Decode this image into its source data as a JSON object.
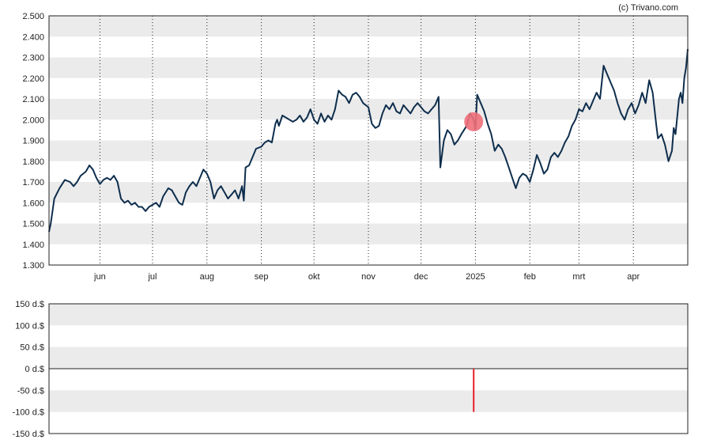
{
  "credit": "(c) Trivano.com",
  "colors": {
    "line": "#0e2e4d",
    "band": "#ebebeb",
    "marker": "#f0707a",
    "bar": "#e8202a",
    "grid": "#222222"
  },
  "chart_data": [
    {
      "type": "line",
      "title": "",
      "xlabel": "",
      "ylabel": "",
      "ylim": [
        1.3,
        2.5
      ],
      "y_ticks": [
        "2.500",
        "2.400",
        "2.300",
        "2.200",
        "2.100",
        "2.000",
        "1.900",
        "1.800",
        "1.700",
        "1.600",
        "1.500",
        "1.400",
        "1.300"
      ],
      "x_ticks": [
        "jun",
        "jul",
        "aug",
        "sep",
        "okt",
        "nov",
        "dec",
        "2025",
        "feb",
        "mrt",
        "apr"
      ],
      "x_tick_dates": [
        "2024-06-01",
        "2024-07-01",
        "2024-08-01",
        "2024-09-01",
        "2024-10-01",
        "2024-11-01",
        "2024-12-01",
        "2025-01-01",
        "2025-02-01",
        "2025-03-01",
        "2025-04-01"
      ],
      "xlim": [
        "2024-05-03",
        "2025-05-02"
      ],
      "grid": "vertical dotted lines at month starts; alternating horizontal bands",
      "series": [
        {
          "points": [
            [
              "2024-05-03",
              1.46
            ],
            [
              "2024-05-04",
              1.5
            ],
            [
              "2024-05-06",
              1.62
            ],
            [
              "2024-05-09",
              1.67
            ],
            [
              "2024-05-12",
              1.71
            ],
            [
              "2024-05-15",
              1.7
            ],
            [
              "2024-05-17",
              1.68
            ],
            [
              "2024-05-19",
              1.7
            ],
            [
              "2024-05-21",
              1.73
            ],
            [
              "2024-05-24",
              1.75
            ],
            [
              "2024-05-26",
              1.78
            ],
            [
              "2024-05-28",
              1.76
            ],
            [
              "2024-05-30",
              1.72
            ],
            [
              "2024-06-01",
              1.69
            ],
            [
              "2024-06-03",
              1.71
            ],
            [
              "2024-06-05",
              1.72
            ],
            [
              "2024-06-07",
              1.71
            ],
            [
              "2024-06-09",
              1.73
            ],
            [
              "2024-06-11",
              1.7
            ],
            [
              "2024-06-13",
              1.62
            ],
            [
              "2024-06-15",
              1.6
            ],
            [
              "2024-06-17",
              1.61
            ],
            [
              "2024-06-19",
              1.59
            ],
            [
              "2024-06-21",
              1.6
            ],
            [
              "2024-06-23",
              1.58
            ],
            [
              "2024-06-25",
              1.58
            ],
            [
              "2024-06-27",
              1.56
            ],
            [
              "2024-06-29",
              1.58
            ],
            [
              "2024-07-01",
              1.59
            ],
            [
              "2024-07-03",
              1.6
            ],
            [
              "2024-07-05",
              1.58
            ],
            [
              "2024-07-07",
              1.63
            ],
            [
              "2024-07-10",
              1.67
            ],
            [
              "2024-07-12",
              1.66
            ],
            [
              "2024-07-14",
              1.63
            ],
            [
              "2024-07-16",
              1.6
            ],
            [
              "2024-07-18",
              1.59
            ],
            [
              "2024-07-20",
              1.65
            ],
            [
              "2024-07-22",
              1.68
            ],
            [
              "2024-07-24",
              1.7
            ],
            [
              "2024-07-26",
              1.68
            ],
            [
              "2024-07-28",
              1.72
            ],
            [
              "2024-07-30",
              1.76
            ],
            [
              "2024-08-01",
              1.74
            ],
            [
              "2024-08-03",
              1.7
            ],
            [
              "2024-08-05",
              1.62
            ],
            [
              "2024-08-07",
              1.66
            ],
            [
              "2024-08-09",
              1.68
            ],
            [
              "2024-08-11",
              1.65
            ],
            [
              "2024-08-13",
              1.62
            ],
            [
              "2024-08-15",
              1.64
            ],
            [
              "2024-08-17",
              1.66
            ],
            [
              "2024-08-19",
              1.62
            ],
            [
              "2024-08-21",
              1.68
            ],
            [
              "2024-08-22",
              1.61
            ],
            [
              "2024-08-23",
              1.77
            ],
            [
              "2024-08-25",
              1.78
            ],
            [
              "2024-08-27",
              1.82
            ],
            [
              "2024-08-29",
              1.86
            ],
            [
              "2024-09-01",
              1.87
            ],
            [
              "2024-09-03",
              1.89
            ],
            [
              "2024-09-05",
              1.9
            ],
            [
              "2024-09-07",
              1.89
            ],
            [
              "2024-09-09",
              1.98
            ],
            [
              "2024-09-10",
              2.0
            ],
            [
              "2024-09-11",
              1.97
            ],
            [
              "2024-09-13",
              2.02
            ],
            [
              "2024-09-15",
              2.01
            ],
            [
              "2024-09-17",
              2.0
            ],
            [
              "2024-09-19",
              1.99
            ],
            [
              "2024-09-21",
              2.0
            ],
            [
              "2024-09-23",
              2.02
            ],
            [
              "2024-09-25",
              1.99
            ],
            [
              "2024-09-27",
              2.01
            ],
            [
              "2024-09-29",
              2.05
            ],
            [
              "2024-10-01",
              2.0
            ],
            [
              "2024-10-03",
              1.98
            ],
            [
              "2024-10-05",
              2.03
            ],
            [
              "2024-10-07",
              1.99
            ],
            [
              "2024-10-09",
              2.02
            ],
            [
              "2024-10-11",
              2.0
            ],
            [
              "2024-10-13",
              2.05
            ],
            [
              "2024-10-15",
              2.14
            ],
            [
              "2024-10-17",
              2.12
            ],
            [
              "2024-10-19",
              2.11
            ],
            [
              "2024-10-21",
              2.08
            ],
            [
              "2024-10-23",
              2.12
            ],
            [
              "2024-10-25",
              2.13
            ],
            [
              "2024-10-27",
              2.11
            ],
            [
              "2024-10-29",
              2.08
            ],
            [
              "2024-11-01",
              2.06
            ],
            [
              "2024-11-03",
              1.98
            ],
            [
              "2024-11-05",
              1.96
            ],
            [
              "2024-11-07",
              1.97
            ],
            [
              "2024-11-09",
              2.03
            ],
            [
              "2024-11-11",
              2.07
            ],
            [
              "2024-11-13",
              2.05
            ],
            [
              "2024-11-15",
              2.08
            ],
            [
              "2024-11-17",
              2.04
            ],
            [
              "2024-11-19",
              2.03
            ],
            [
              "2024-11-21",
              2.07
            ],
            [
              "2024-11-23",
              2.05
            ],
            [
              "2024-11-25",
              2.03
            ],
            [
              "2024-11-27",
              2.06
            ],
            [
              "2024-11-29",
              2.08
            ],
            [
              "2024-12-01",
              2.06
            ],
            [
              "2024-12-03",
              2.04
            ],
            [
              "2024-12-05",
              2.03
            ],
            [
              "2024-12-07",
              2.05
            ],
            [
              "2024-12-09",
              2.07
            ],
            [
              "2024-12-11",
              2.11
            ],
            [
              "2024-12-12",
              1.77
            ],
            [
              "2024-12-14",
              1.9
            ],
            [
              "2024-12-16",
              1.95
            ],
            [
              "2024-12-18",
              1.93
            ],
            [
              "2024-12-20",
              1.88
            ],
            [
              "2024-12-22",
              1.9
            ],
            [
              "2024-12-24",
              1.93
            ],
            [
              "2024-12-27",
              1.97
            ],
            [
              "2024-12-29",
              2.03
            ],
            [
              "2024-12-31",
              2.0
            ],
            [
              "2025-01-01",
              1.95
            ],
            [
              "2025-01-02",
              2.12
            ],
            [
              "2025-01-04",
              2.08
            ],
            [
              "2025-01-06",
              2.04
            ],
            [
              "2025-01-08",
              1.98
            ],
            [
              "2025-01-10",
              1.93
            ],
            [
              "2025-01-12",
              1.85
            ],
            [
              "2025-01-14",
              1.88
            ],
            [
              "2025-01-16",
              1.86
            ],
            [
              "2025-01-18",
              1.82
            ],
            [
              "2025-01-20",
              1.77
            ],
            [
              "2025-01-22",
              1.72
            ],
            [
              "2025-01-24",
              1.67
            ],
            [
              "2025-01-26",
              1.72
            ],
            [
              "2025-01-28",
              1.74
            ],
            [
              "2025-01-30",
              1.73
            ],
            [
              "2025-02-01",
              1.7
            ],
            [
              "2025-02-03",
              1.76
            ],
            [
              "2025-02-05",
              1.83
            ],
            [
              "2025-02-07",
              1.79
            ],
            [
              "2025-02-09",
              1.74
            ],
            [
              "2025-02-11",
              1.76
            ],
            [
              "2025-02-13",
              1.82
            ],
            [
              "2025-02-15",
              1.84
            ],
            [
              "2025-02-17",
              1.82
            ],
            [
              "2025-02-19",
              1.85
            ],
            [
              "2025-02-21",
              1.89
            ],
            [
              "2025-02-23",
              1.92
            ],
            [
              "2025-02-25",
              1.97
            ],
            [
              "2025-02-27",
              2.0
            ],
            [
              "2025-03-01",
              2.05
            ],
            [
              "2025-03-03",
              2.04
            ],
            [
              "2025-03-05",
              2.08
            ],
            [
              "2025-03-07",
              2.05
            ],
            [
              "2025-03-09",
              2.09
            ],
            [
              "2025-03-11",
              2.13
            ],
            [
              "2025-03-13",
              2.1
            ],
            [
              "2025-03-15",
              2.26
            ],
            [
              "2025-03-17",
              2.22
            ],
            [
              "2025-03-19",
              2.18
            ],
            [
              "2025-03-21",
              2.14
            ],
            [
              "2025-03-23",
              2.08
            ],
            [
              "2025-03-25",
              2.03
            ],
            [
              "2025-03-27",
              2.0
            ],
            [
              "2025-03-29",
              2.05
            ],
            [
              "2025-03-31",
              2.08
            ],
            [
              "2025-04-02",
              2.03
            ],
            [
              "2025-04-04",
              2.07
            ],
            [
              "2025-04-06",
              2.13
            ],
            [
              "2025-04-08",
              2.08
            ],
            [
              "2025-04-10",
              2.19
            ],
            [
              "2025-04-12",
              2.13
            ],
            [
              "2025-04-14",
              1.98
            ],
            [
              "2025-04-15",
              1.91
            ],
            [
              "2025-04-17",
              1.93
            ],
            [
              "2025-04-19",
              1.88
            ],
            [
              "2025-04-21",
              1.8
            ],
            [
              "2025-04-23",
              1.85
            ],
            [
              "2025-04-24",
              1.96
            ],
            [
              "2025-04-25",
              1.93
            ],
            [
              "2025-04-27",
              2.1
            ],
            [
              "2025-04-28",
              2.13
            ],
            [
              "2025-04-29",
              2.08
            ],
            [
              "2025-04-30",
              2.2
            ],
            [
              "2025-05-01",
              2.25
            ],
            [
              "2025-05-02",
              2.34
            ]
          ]
        }
      ],
      "annotations": [
        {
          "type": "marker-circle",
          "x": "2024-12-31",
          "y": 1.99
        }
      ]
    },
    {
      "type": "bar",
      "title": "",
      "xlabel": "",
      "ylabel": "",
      "ylim": [
        -150,
        150
      ],
      "y_ticks": [
        "150 d.$",
        "100 d.$",
        "50 d.$",
        "0 d.$",
        "-50 d.$",
        "-100 d.$",
        "-150 d.$"
      ],
      "series": [
        {
          "points": [
            [
              "2024-12-31",
              -100
            ]
          ]
        }
      ]
    }
  ]
}
